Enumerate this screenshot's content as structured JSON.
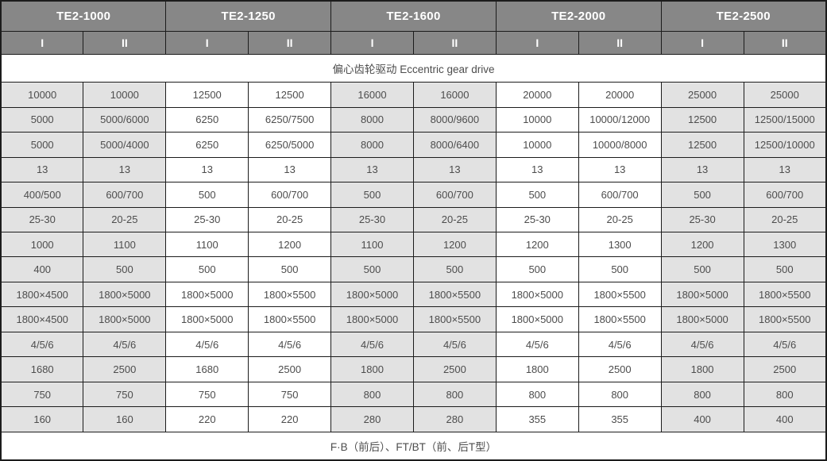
{
  "table": {
    "column_groups": [
      {
        "label": "TE2-1000",
        "subcolumns": [
          "I",
          "II"
        ]
      },
      {
        "label": "TE2-1250",
        "subcolumns": [
          "I",
          "II"
        ]
      },
      {
        "label": "TE2-1600",
        "subcolumns": [
          "I",
          "II"
        ]
      },
      {
        "label": "TE2-2000",
        "subcolumns": [
          "I",
          "II"
        ]
      },
      {
        "label": "TE2-2500",
        "subcolumns": [
          "I",
          "II"
        ]
      }
    ],
    "drive_type_row": "偏心齿轮驱动  Eccentric gear drive",
    "rows": [
      [
        "10000",
        "10000",
        "12500",
        "12500",
        "16000",
        "16000",
        "20000",
        "20000",
        "25000",
        "25000"
      ],
      [
        "5000",
        "5000/6000",
        "6250",
        "6250/7500",
        "8000",
        "8000/9600",
        "10000",
        "10000/12000",
        "12500",
        "12500/15000"
      ],
      [
        "5000",
        "5000/4000",
        "6250",
        "6250/5000",
        "8000",
        "8000/6400",
        "10000",
        "10000/8000",
        "12500",
        "12500/10000"
      ],
      [
        "13",
        "13",
        "13",
        "13",
        "13",
        "13",
        "13",
        "13",
        "13",
        "13"
      ],
      [
        "400/500",
        "600/700",
        "500",
        "600/700",
        "500",
        "600/700",
        "500",
        "600/700",
        "500",
        "600/700"
      ],
      [
        "25-30",
        "20-25",
        "25-30",
        "20-25",
        "25-30",
        "20-25",
        "25-30",
        "20-25",
        "25-30",
        "20-25"
      ],
      [
        "1000",
        "1100",
        "1100",
        "1200",
        "1100",
        "1200",
        "1200",
        "1300",
        "1200",
        "1300"
      ],
      [
        "400",
        "500",
        "500",
        "500",
        "500",
        "500",
        "500",
        "500",
        "500",
        "500"
      ],
      [
        "1800×4500",
        "1800×5000",
        "1800×5000",
        "1800×5500",
        "1800×5000",
        "1800×5500",
        "1800×5000",
        "1800×5500",
        "1800×5000",
        "1800×5500"
      ],
      [
        "1800×4500",
        "1800×5000",
        "1800×5000",
        "1800×5500",
        "1800×5000",
        "1800×5500",
        "1800×5000",
        "1800×5500",
        "1800×5000",
        "1800×5500"
      ],
      [
        "4/5/6",
        "4/5/6",
        "4/5/6",
        "4/5/6",
        "4/5/6",
        "4/5/6",
        "4/5/6",
        "4/5/6",
        "4/5/6",
        "4/5/6"
      ],
      [
        "1680",
        "2500",
        "1680",
        "2500",
        "1800",
        "2500",
        "1800",
        "2500",
        "1800",
        "2500"
      ],
      [
        "750",
        "750",
        "750",
        "750",
        "800",
        "800",
        "800",
        "800",
        "800",
        "800"
      ],
      [
        "160",
        "160",
        "220",
        "220",
        "280",
        "280",
        "355",
        "355",
        "400",
        "400"
      ]
    ],
    "mount_type_row": "F·B（前后）、FT/BT（前、后T型）"
  },
  "colors": {
    "header_bg": "#878787",
    "header_text": "#ffffff",
    "striped_cell_bg": "#e2e2e2",
    "cell_bg": "#ffffff",
    "border": "#1c1c1c",
    "text": "#4d4d4d"
  }
}
